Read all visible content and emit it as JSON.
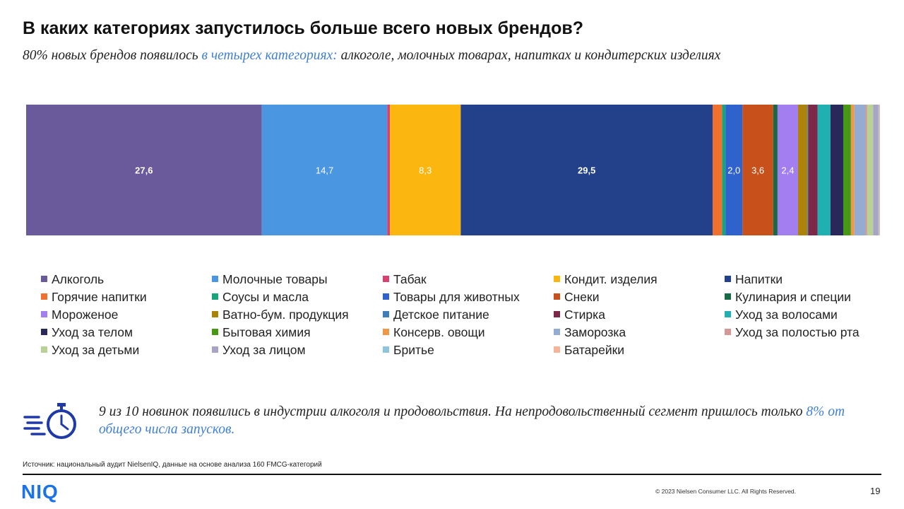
{
  "title": "В каких категориях запустилось больше всего новых брендов?",
  "subtitle": {
    "prefix": "80% новых брендов появилось ",
    "highlight": "в четырех категориях:",
    "suffix": " алкоголе, молочных товарах, напитках и кондитерских изделиях"
  },
  "chart_data": {
    "type": "bar",
    "orientation": "horizontal-stacked-100",
    "unit": "%",
    "series": [
      {
        "name": "Алкоголь",
        "value": 27.6,
        "label": "27,6",
        "color": "#6a5a9c"
      },
      {
        "name": "Молочные товары",
        "value": 14.7,
        "label": "14,7",
        "color": "#4a96e0"
      },
      {
        "name": "Табак",
        "value": 0.3,
        "label": "",
        "color": "#d6426e"
      },
      {
        "name": "Кондит. изделия",
        "value": 8.3,
        "label": "8,3",
        "color": "#fbb710"
      },
      {
        "name": "Напитки",
        "value": 29.5,
        "label": "29,5",
        "color": "#22418a"
      },
      {
        "name": "Горячие напитки",
        "value": 1.1,
        "label": "",
        "color": "#f07030"
      },
      {
        "name": "Соусы и масла",
        "value": 0.4,
        "label": "",
        "color": "#16a47a"
      },
      {
        "name": "Товары для животных",
        "value": 2.0,
        "label": "2,0",
        "color": "#2f62cc"
      },
      {
        "name": "Снеки",
        "value": 3.6,
        "label": "3,6",
        "color": "#c8501a"
      },
      {
        "name": "Кулинария и специи",
        "value": 0.5,
        "label": "",
        "color": "#166a44"
      },
      {
        "name": "Мороженое",
        "value": 2.4,
        "label": "2,4",
        "color": "#a27ef0"
      },
      {
        "name": "Ватно-бум. продукция",
        "value": 1.1,
        "label": "",
        "color": "#ac8208"
      },
      {
        "name": "Детское питание",
        "value": 0.1,
        "label": "",
        "color": "#3f7eb6"
      },
      {
        "name": "Стирка",
        "value": 1.1,
        "label": "",
        "color": "#7c2848"
      },
      {
        "name": "Уход за волосами",
        "value": 1.5,
        "label": "",
        "color": "#20b0b2"
      },
      {
        "name": "Уход за телом",
        "value": 1.5,
        "label": "",
        "color": "#28285a"
      },
      {
        "name": "Бытовая химия",
        "value": 0.9,
        "label": "",
        "color": "#489818"
      },
      {
        "name": "Консерв. овощи",
        "value": 0.4,
        "label": "",
        "color": "#f0974a"
      },
      {
        "name": "Заморозка",
        "value": 1.3,
        "label": "",
        "color": "#94acd2"
      },
      {
        "name": "Уход за полостью рта",
        "value": 0.2,
        "label": "",
        "color": "#d49896"
      },
      {
        "name": "Уход за детьми",
        "value": 0.7,
        "label": "",
        "color": "#b8d296"
      },
      {
        "name": "Уход за лицом",
        "value": 0.6,
        "label": "",
        "color": "#a8a4c6"
      },
      {
        "name": "Бритье",
        "value": 0.1,
        "label": "",
        "color": "#8ec4dc"
      },
      {
        "name": "Батарейки",
        "value": 0.1,
        "label": "",
        "color": "#f6b49a"
      }
    ],
    "legend_position": "bottom",
    "legend_columns": 5,
    "grid": false
  },
  "note": {
    "icon": "stopwatch-icon",
    "prefix": "9 из 10 новинок появились в индустрии алкоголя и продовольствия. На непродовольственный сегмент пришлось только ",
    "highlight": "8% от общего числа запусков."
  },
  "source": "Источник: национальный аудит NielsenIQ, данные на основе анализа 160 FMCG-категорий",
  "footer": {
    "logo": "NIQ",
    "copyright": "© 2023 Nielsen Consumer LLC. All Rights Reserved.",
    "page_number": "19"
  },
  "colors": {
    "accent": "#3f7fd6",
    "logo": "#1a73e8",
    "icon": "#1f3aa8"
  }
}
